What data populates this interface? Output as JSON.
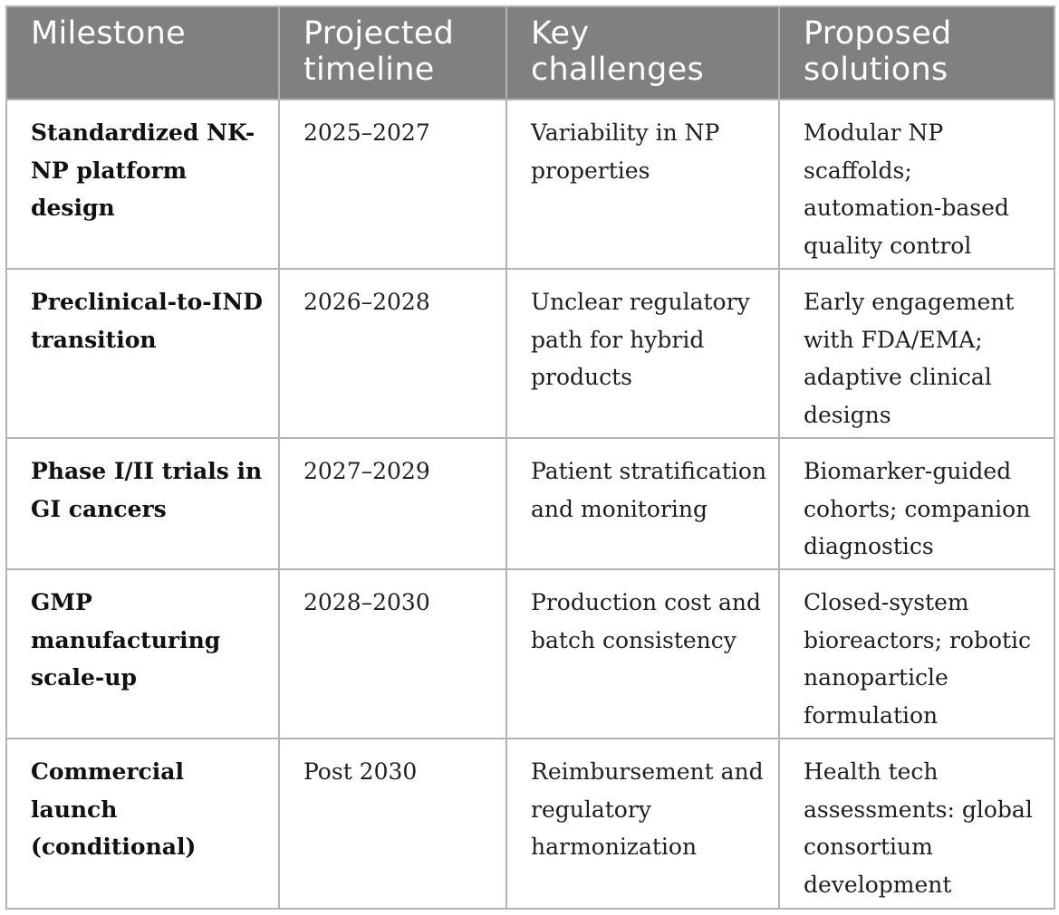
{
  "table": {
    "headers": {
      "milestone": "Milestone",
      "timeline": "Projected timeline",
      "challenges": "Key challenges",
      "solutions": "Proposed solutions"
    },
    "rows": [
      {
        "milestone": "Standardized NK-NP platform design",
        "timeline": "2025–2027",
        "challenges": "Variability in NP properties",
        "solutions": "Modular NP scaffolds; automation-based quality control"
      },
      {
        "milestone": "Preclinical-to-IND transition",
        "timeline": "2026–2028",
        "challenges": "Unclear regulatory path for hybrid products",
        "solutions": "Early engagement with FDA/EMA; adaptive clinical designs"
      },
      {
        "milestone": "Phase I/II trials in GI cancers",
        "timeline": "2027–2029",
        "challenges": "Patient stratification and monitoring",
        "solutions": "Biomarker-guided cohorts; companion diagnostics"
      },
      {
        "milestone": "GMP manufacturing scale-up",
        "timeline": "2028–2030",
        "challenges": "Production cost and batch consistency",
        "solutions": "Closed-system bioreactors; robotic nanoparticle formulation"
      },
      {
        "milestone": "Commercial launch (conditional)",
        "timeline": "Post 2030",
        "challenges": "Reimbursement and regulatory harmonization",
        "solutions": "Health tech assessments: global consortium development"
      }
    ]
  }
}
